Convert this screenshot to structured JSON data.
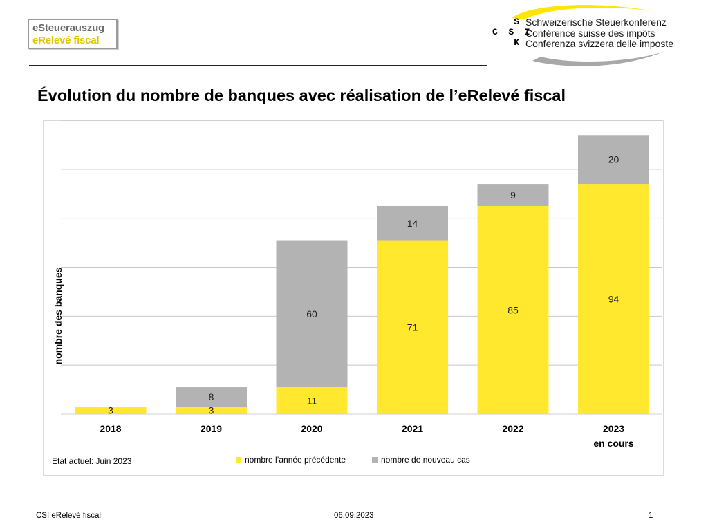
{
  "header": {
    "logo_line1": "eSteuerauszug",
    "logo_line2": "eRelevé fiscal",
    "csi_letters": "    S\nC  S  I\n    K",
    "csi_names": [
      "Schweizerische Steuerkonferenz",
      "Conférence suisse des impôts",
      "Conferenza svizzera delle imposte"
    ]
  },
  "title": "Évolution du nombre de banques avec réalisation de l’eRelevé fiscal",
  "status_note": "Etat actuel: Juin 2023",
  "colors": {
    "previous": "#ffe82e",
    "new": "#b3b3b3",
    "grid": "#c8c8c8"
  },
  "chart_data": {
    "type": "bar",
    "stacked": true,
    "categories": [
      "2018",
      "2019",
      "2020",
      "2021",
      "2022",
      "2023"
    ],
    "category_sublabels": [
      "",
      "",
      "",
      "",
      "",
      "en cours"
    ],
    "series": [
      {
        "name": "nombre l’année précédente",
        "values": [
          3,
          3,
          11,
          71,
          85,
          94
        ]
      },
      {
        "name": "nombre de nouveau cas",
        "values": [
          0,
          8,
          60,
          14,
          9,
          20
        ]
      }
    ],
    "data_labels": [
      [
        "3",
        "3",
        "11",
        "71",
        "85",
        "94"
      ],
      [
        "",
        "8",
        "60",
        "14",
        "9",
        "20"
      ]
    ],
    "xlabel": "",
    "ylabel": "nombre des banques",
    "ylim": [
      0,
      120
    ],
    "grid": true,
    "legend": "bottom"
  },
  "footer": {
    "left": "CSI eRelevé fiscal",
    "date": "06.09.2023",
    "page": "1"
  }
}
